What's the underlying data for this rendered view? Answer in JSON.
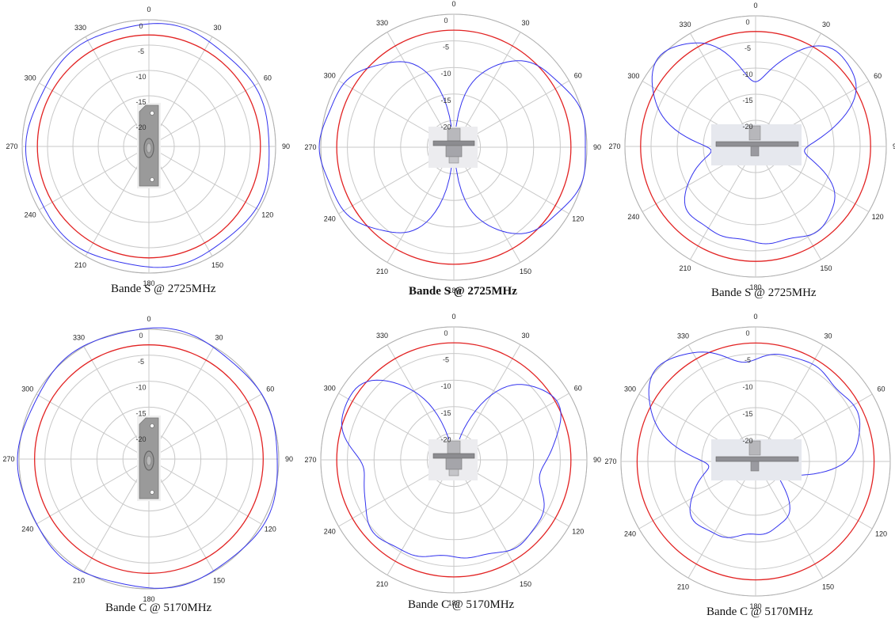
{
  "chart_data": [
    {
      "type": "polar",
      "caption": "Bande S @ 2725MHz",
      "angle_labels": [
        "0",
        "30",
        "60",
        "90",
        "120",
        "150",
        "180",
        "210",
        "240",
        "270",
        "300",
        "330"
      ],
      "radial_labels": [
        "0",
        "-5",
        "-10",
        "-15",
        "-20"
      ],
      "rlim_db": [
        -25,
        0
      ],
      "grid": true,
      "reference_circle_db": -3,
      "pattern": {
        "shape": "omni",
        "base_db": -1.0,
        "ripple_db": 0.3
      },
      "antenna_view": "front",
      "colors": {
        "pattern": "#3333ee",
        "reference": "#e22222",
        "grid": "#c8c8c8"
      }
    },
    {
      "type": "polar",
      "caption": "Bande S @ 2725MHz",
      "caption_bold": true,
      "angle_labels": [
        "0",
        "30",
        "60",
        "90",
        "120",
        "150",
        "180",
        "210",
        "240",
        "270",
        "300",
        "330"
      ],
      "radial_labels": [
        "0",
        "-5",
        "-10",
        "-15",
        "-20"
      ],
      "rlim_db": [
        -25,
        0
      ],
      "grid": true,
      "reference_circle_db": -3,
      "pattern": {
        "shape": "dipole",
        "peak_db": 0,
        "null_db": -22,
        "lobe_angles": [
          90,
          270
        ]
      },
      "antenna_view": "side",
      "colors": {
        "pattern": "#3333ee",
        "reference": "#e22222",
        "grid": "#c8c8c8"
      }
    },
    {
      "type": "polar",
      "caption": "Bande S @ 2725MHz",
      "angle_labels": [
        "0",
        "30",
        "60",
        "90",
        "120",
        "150",
        "180",
        "210",
        "240",
        "270",
        "300",
        "330"
      ],
      "radial_labels": [
        "0",
        "-5",
        "-10",
        "-15",
        "-20"
      ],
      "rlim_db": [
        -25,
        0
      ],
      "grid": true,
      "reference_circle_db": -3,
      "pattern": {
        "shape": "multilobe",
        "lobe_angles": [
          315,
          45,
          180,
          135,
          225
        ],
        "lobe_db": [
          0,
          -1,
          -9,
          -6,
          -8
        ],
        "null_db": -22
      },
      "antenna_view": "top",
      "colors": {
        "pattern": "#3333ee",
        "reference": "#e22222",
        "grid": "#c8c8c8"
      }
    },
    {
      "type": "polar",
      "caption": "Bande C @ 5170MHz",
      "angle_labels": [
        "0",
        "30",
        "60",
        "90",
        "120",
        "150",
        "180",
        "210",
        "240",
        "270",
        "300",
        "330"
      ],
      "radial_labels": [
        "0",
        "-5",
        "-10",
        "-15",
        "-20"
      ],
      "rlim_db": [
        -25,
        0
      ],
      "grid": true,
      "reference_circle_db": -3,
      "pattern": {
        "shape": "omni",
        "base_db": 0.0,
        "ripple_db": 0.3
      },
      "antenna_view": "front",
      "colors": {
        "pattern": "#3333ee",
        "reference": "#e22222",
        "grid": "#c8c8c8"
      }
    },
    {
      "type": "polar",
      "caption": "Bande C @ 5170MHz",
      "angle_labels": [
        "0",
        "30",
        "60",
        "90",
        "120",
        "150",
        "180",
        "210",
        "240",
        "270",
        "300",
        "330"
      ],
      "radial_labels": [
        "0",
        "-5",
        "-10",
        "-15",
        "-20"
      ],
      "rlim_db": [
        -25,
        0
      ],
      "grid": true,
      "reference_circle_db": -3,
      "pattern": {
        "shape": "multilobe",
        "lobe_angles": [
          300,
          60,
          235,
          125,
          160,
          200
        ],
        "lobe_db": [
          -2,
          -3,
          -7,
          -7,
          -10,
          -10
        ],
        "null_db": -22
      },
      "antenna_view": "side",
      "colors": {
        "pattern": "#3333ee",
        "reference": "#e22222",
        "grid": "#c8c8c8"
      }
    },
    {
      "type": "polar",
      "caption": "Bande C @ 5170MHz",
      "angle_labels": [
        "0",
        "30",
        "60",
        "90",
        "120",
        "150",
        "180",
        "210",
        "240",
        "270",
        "300",
        "330"
      ],
      "radial_labels": [
        "0",
        "-5",
        "-10",
        "-15",
        "-20"
      ],
      "rlim_db": [
        -25,
        0
      ],
      "grid": true,
      "reference_circle_db": -3,
      "pattern": {
        "shape": "multilobe",
        "lobe_angles": [
          315,
          20,
          70,
          155,
          230,
          195
        ],
        "lobe_db": [
          0,
          -5,
          -5,
          -14,
          -11,
          -15
        ],
        "null_db": -20
      },
      "antenna_view": "top",
      "colors": {
        "pattern": "#3333ee",
        "reference": "#e22222",
        "grid": "#c8c8c8"
      }
    }
  ]
}
